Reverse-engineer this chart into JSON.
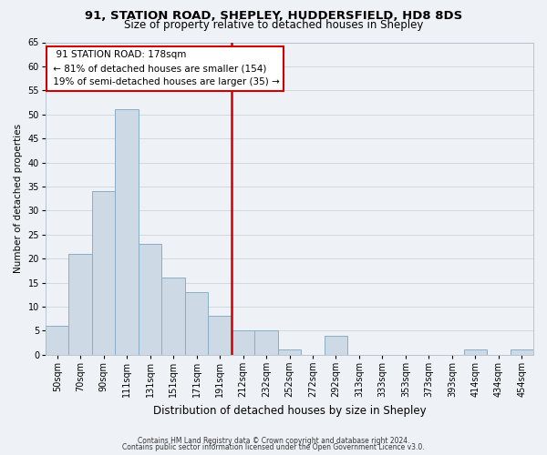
{
  "title1": "91, STATION ROAD, SHEPLEY, HUDDERSFIELD, HD8 8DS",
  "title2": "Size of property relative to detached houses in Shepley",
  "xlabel": "Distribution of detached houses by size in Shepley",
  "ylabel": "Number of detached properties",
  "bar_color": "#cdd9e5",
  "bar_edge_color": "#8aaec8",
  "bin_labels": [
    "50sqm",
    "70sqm",
    "90sqm",
    "111sqm",
    "131sqm",
    "151sqm",
    "171sqm",
    "191sqm",
    "212sqm",
    "232sqm",
    "252sqm",
    "272sqm",
    "292sqm",
    "313sqm",
    "333sqm",
    "353sqm",
    "373sqm",
    "393sqm",
    "414sqm",
    "434sqm",
    "454sqm"
  ],
  "bar_heights": [
    6,
    21,
    34,
    51,
    23,
    16,
    13,
    8,
    5,
    5,
    1,
    0,
    4,
    0,
    0,
    0,
    0,
    0,
    1,
    0,
    1
  ],
  "ylim": [
    0,
    65
  ],
  "yticks": [
    0,
    5,
    10,
    15,
    20,
    25,
    30,
    35,
    40,
    45,
    50,
    55,
    60,
    65
  ],
  "vline_color": "#cc0000",
  "vline_pos": 7.5,
  "annotation_title": "91 STATION ROAD: 178sqm",
  "annotation_line1": "← 81% of detached houses are smaller (154)",
  "annotation_line2": "19% of semi-detached houses are larger (35) →",
  "annotation_box_color": "#ffffff",
  "annotation_box_edge": "#cc0000",
  "footer1": "Contains HM Land Registry data © Crown copyright and database right 2024.",
  "footer2": "Contains public sector information licensed under the Open Government Licence v3.0.",
  "grid_color": "#d0d8e0",
  "bg_color": "#eef2f6",
  "plot_bg_color": "#eef2f6",
  "title1_fontsize": 9.5,
  "title2_fontsize": 8.5,
  "xlabel_fontsize": 8.5,
  "ylabel_fontsize": 7.5,
  "tick_fontsize": 7,
  "annotation_fontsize": 7.5,
  "footer_fontsize": 5.5
}
